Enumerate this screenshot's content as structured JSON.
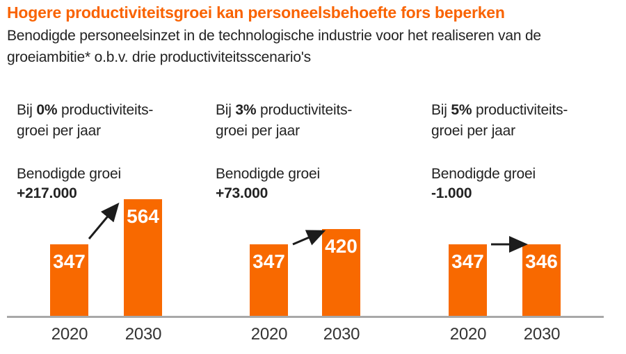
{
  "colors": {
    "title_orange": "#F96302",
    "bar_orange": "#F86900",
    "axis_gray": "#A8A8A8",
    "text_dark": "#232323",
    "arrow_black": "#1C1C1C",
    "bar_label_white": "#FFFFFF"
  },
  "chart_data": {
    "type": "bar",
    "title": "Hogere productiviteitsgroei kan personeelsbehoefte fors beperken",
    "subtitle_lines": [
      "Benodigde personeelsinzet in de technologische industrie voor het realiseren van de",
      "groeiambitie* o.b.v. drie productiviteitsscenario's"
    ],
    "categories": [
      "2020",
      "2030"
    ],
    "ylim": [
      0,
      600
    ],
    "grid": false,
    "legend": false,
    "value_labels_inside_bars": true,
    "groups": [
      {
        "scenario": {
          "prefix": "Bij",
          "pct": "0%",
          "suffix": "productiviteits-",
          "line2": "groei per jaar"
        },
        "growth_label": "Benodigde groei",
        "growth_value": "+217.000",
        "values": [
          347,
          564
        ],
        "trend": "up"
      },
      {
        "scenario": {
          "prefix": "Bij",
          "pct": "3%",
          "suffix": "productiviteits-",
          "line2": "groei per jaar"
        },
        "growth_label": "Benodigde groei",
        "growth_value": "+73.000",
        "values": [
          347,
          420
        ],
        "trend": "up"
      },
      {
        "scenario": {
          "prefix": "Bij",
          "pct": "5%",
          "suffix": "productiviteits-",
          "line2": "groei per jaar"
        },
        "growth_label": "Benodigde groei",
        "growth_value": "-1.000",
        "values": [
          347,
          346
        ],
        "trend": "flat"
      }
    ]
  }
}
